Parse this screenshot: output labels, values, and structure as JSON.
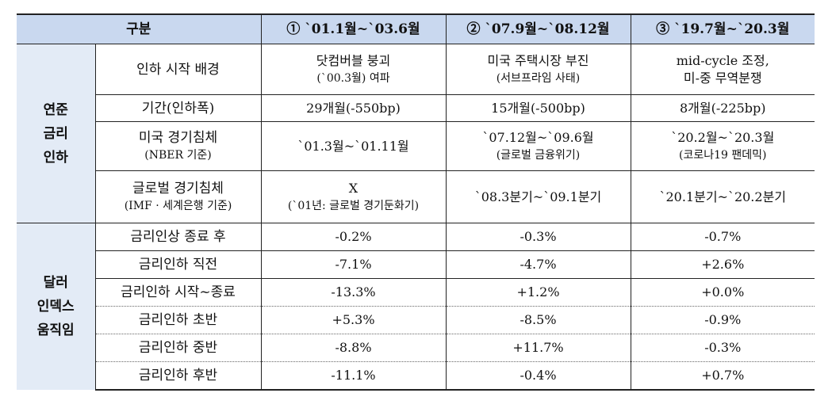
{
  "header": {
    "col_label": "구분",
    "col1": "① `01.1월~`03.6월",
    "col2": "② `07.9월~`08.12월",
    "col3": "③ `19.7월~`20.3월"
  },
  "section1": {
    "title_lines": [
      "연준",
      "금리",
      "인하"
    ],
    "rows": [
      {
        "label": "인하 시작 배경",
        "label_sub": "",
        "c1": [
          "닷컴버블 붕괴",
          "(`00.3월) 여파"
        ],
        "c2": [
          "미국 주택시장 부진",
          "(서브프라임 사태)"
        ],
        "c3": [
          "mid-cycle 조정,",
          "미-중 무역분쟁"
        ]
      },
      {
        "label": "기간(인하폭)",
        "label_sub": "",
        "c1": [
          "29개월(-550bp)"
        ],
        "c2": [
          "15개월(-500bp)"
        ],
        "c3": [
          "8개월(-225bp)"
        ]
      },
      {
        "label": "미국 경기침체",
        "label_sub": "(NBER 기준)",
        "c1": [
          "`01.3월~`01.11월"
        ],
        "c2": [
          "`07.12월~`09.6월",
          "(글로벌 금융위기)"
        ],
        "c3": [
          "`20.2월~`20.3월",
          "(코로나19 팬데믹)"
        ]
      },
      {
        "label": "글로벌 경기침체",
        "label_sub": "(IMF · 세계은행 기준)",
        "c1": [
          "X",
          "(`01년: 글로벌 경기둔화기)"
        ],
        "c2": [
          "`08.3분기~`09.1분기"
        ],
        "c3": [
          "`20.1분기~`20.2분기"
        ]
      }
    ]
  },
  "section2": {
    "title_lines": [
      "달러",
      "인덱스",
      "움직임"
    ],
    "rows": [
      {
        "label": "금리인상 종료 후",
        "c1": "-0.2%",
        "c2": "-0.3%",
        "c3": "-0.7%"
      },
      {
        "label": "금리인하 직전",
        "c1": "-7.1%",
        "c2": "-4.7%",
        "c3": "+2.6%"
      },
      {
        "label": "금리인하 시작~종료",
        "c1": "-13.3%",
        "c2": "+1.2%",
        "c3": "+0.0%"
      },
      {
        "label": "금리인하 초반",
        "c1": "+5.3%",
        "c2": "-8.5%",
        "c3": "-0.9%"
      },
      {
        "label": "금리인하 중반",
        "c1": "-8.8%",
        "c2": "+11.7%",
        "c3": "-0.3%"
      },
      {
        "label": "금리인하 후반",
        "c1": "-11.1%",
        "c2": "-0.4%",
        "c3": "+0.7%"
      }
    ]
  }
}
